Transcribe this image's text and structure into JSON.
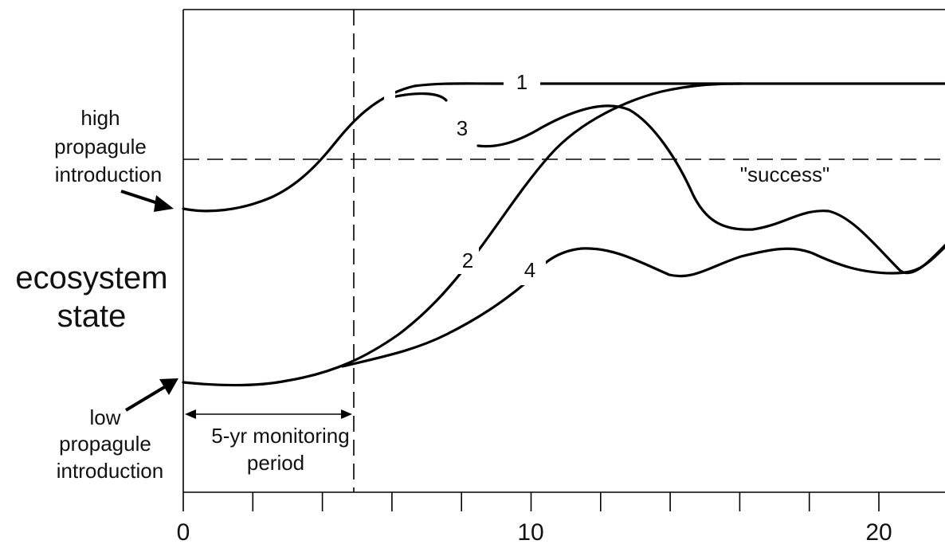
{
  "labels": {
    "y_axis": [
      "ecosystem",
      "state"
    ],
    "high_input": [
      "high",
      "propagule",
      "introduction"
    ],
    "low_input": [
      "low",
      "propagule",
      "introduction"
    ],
    "monitoring": [
      "5-yr monitoring",
      "period"
    ],
    "success": "\"success\""
  },
  "curves": [
    {
      "id": "1",
      "label": "1"
    },
    {
      "id": "2",
      "label": "2"
    },
    {
      "id": "3",
      "label": "3"
    },
    {
      "id": "4",
      "label": "4"
    }
  ],
  "x_axis": {
    "min": 0,
    "max": 22,
    "tick_step": 2,
    "labels": [
      "0",
      "10",
      "20"
    ]
  },
  "monitoring_period_years": 5,
  "colors": {
    "ink": "#000000",
    "background": "#ffffff"
  }
}
